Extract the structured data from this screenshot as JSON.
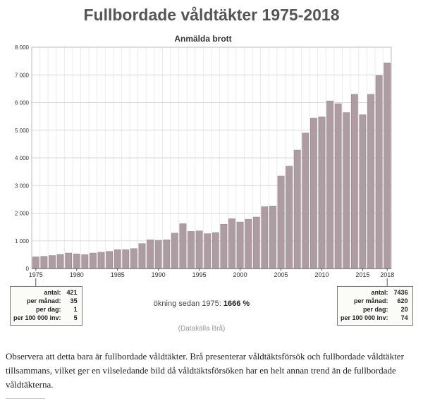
{
  "page": {
    "caption": "Observera att detta bara är fullbordade våldtäkter. Brå presenterar våldtäktsförsök och fullbordade våldtäkter tillsammans, vilket ger en vilseledande bild då våldtäktsförsöken har en helt annan trend än de fullbordade våldtäkterna."
  },
  "chart_data": {
    "type": "bar",
    "title": "Fullbordade våldtäkter 1975-2018",
    "subtitle": "Anmälda brott",
    "source": "(Datakälla Brå)",
    "increase_label": "ökning sedan 1975:",
    "increase_value": "1666 %",
    "bar_color": "#ad9da3",
    "ylim": [
      0,
      8000
    ],
    "grid": true,
    "y_ticks": [
      {
        "value": 0,
        "label": "0"
      },
      {
        "value": 1000,
        "label": "1 000"
      },
      {
        "value": 2000,
        "label": "2 000"
      },
      {
        "value": 3000,
        "label": "3 000"
      },
      {
        "value": 4000,
        "label": "4 000"
      },
      {
        "value": 5000,
        "label": "5 000"
      },
      {
        "value": 6000,
        "label": "6 000"
      },
      {
        "value": 7000,
        "label": "7 000"
      },
      {
        "value": 8000,
        "label": "8 000"
      }
    ],
    "x_ticks": [
      "1975",
      "1980",
      "1985",
      "1990",
      "1995",
      "2000",
      "2005",
      "2010",
      "2015",
      "2018"
    ],
    "categories": [
      "1975",
      "1976",
      "1977",
      "1978",
      "1979",
      "1980",
      "1981",
      "1982",
      "1983",
      "1984",
      "1985",
      "1986",
      "1987",
      "1988",
      "1989",
      "1990",
      "1991",
      "1992",
      "1993",
      "1994",
      "1995",
      "1996",
      "1997",
      "1998",
      "1999",
      "2000",
      "2001",
      "2002",
      "2003",
      "2004",
      "2005",
      "2006",
      "2007",
      "2008",
      "2009",
      "2010",
      "2011",
      "2012",
      "2013",
      "2014",
      "2015",
      "2016",
      "2017",
      "2018"
    ],
    "values": [
      421,
      440,
      470,
      510,
      560,
      530,
      500,
      560,
      590,
      620,
      680,
      680,
      720,
      900,
      1040,
      1020,
      1040,
      1280,
      1620,
      1340,
      1360,
      1260,
      1300,
      1600,
      1800,
      1680,
      1780,
      1860,
      2240,
      2260,
      3340,
      3700,
      4280,
      4900,
      5440,
      5480,
      6060,
      5960,
      5640,
      6300,
      5560,
      6300,
      6980,
      7436
    ],
    "stats_start": [
      {
        "label": "antal:",
        "value": "421"
      },
      {
        "label": "per månad:",
        "value": "35"
      },
      {
        "label": "per dag:",
        "value": "1"
      },
      {
        "label": "per 100 000 inv:",
        "value": "5"
      }
    ],
    "stats_end": [
      {
        "label": "antal:",
        "value": "7436"
      },
      {
        "label": "per månad:",
        "value": "620"
      },
      {
        "label": "per dag:",
        "value": "20"
      },
      {
        "label": "per 100 000 inv:",
        "value": "74"
      }
    ]
  }
}
